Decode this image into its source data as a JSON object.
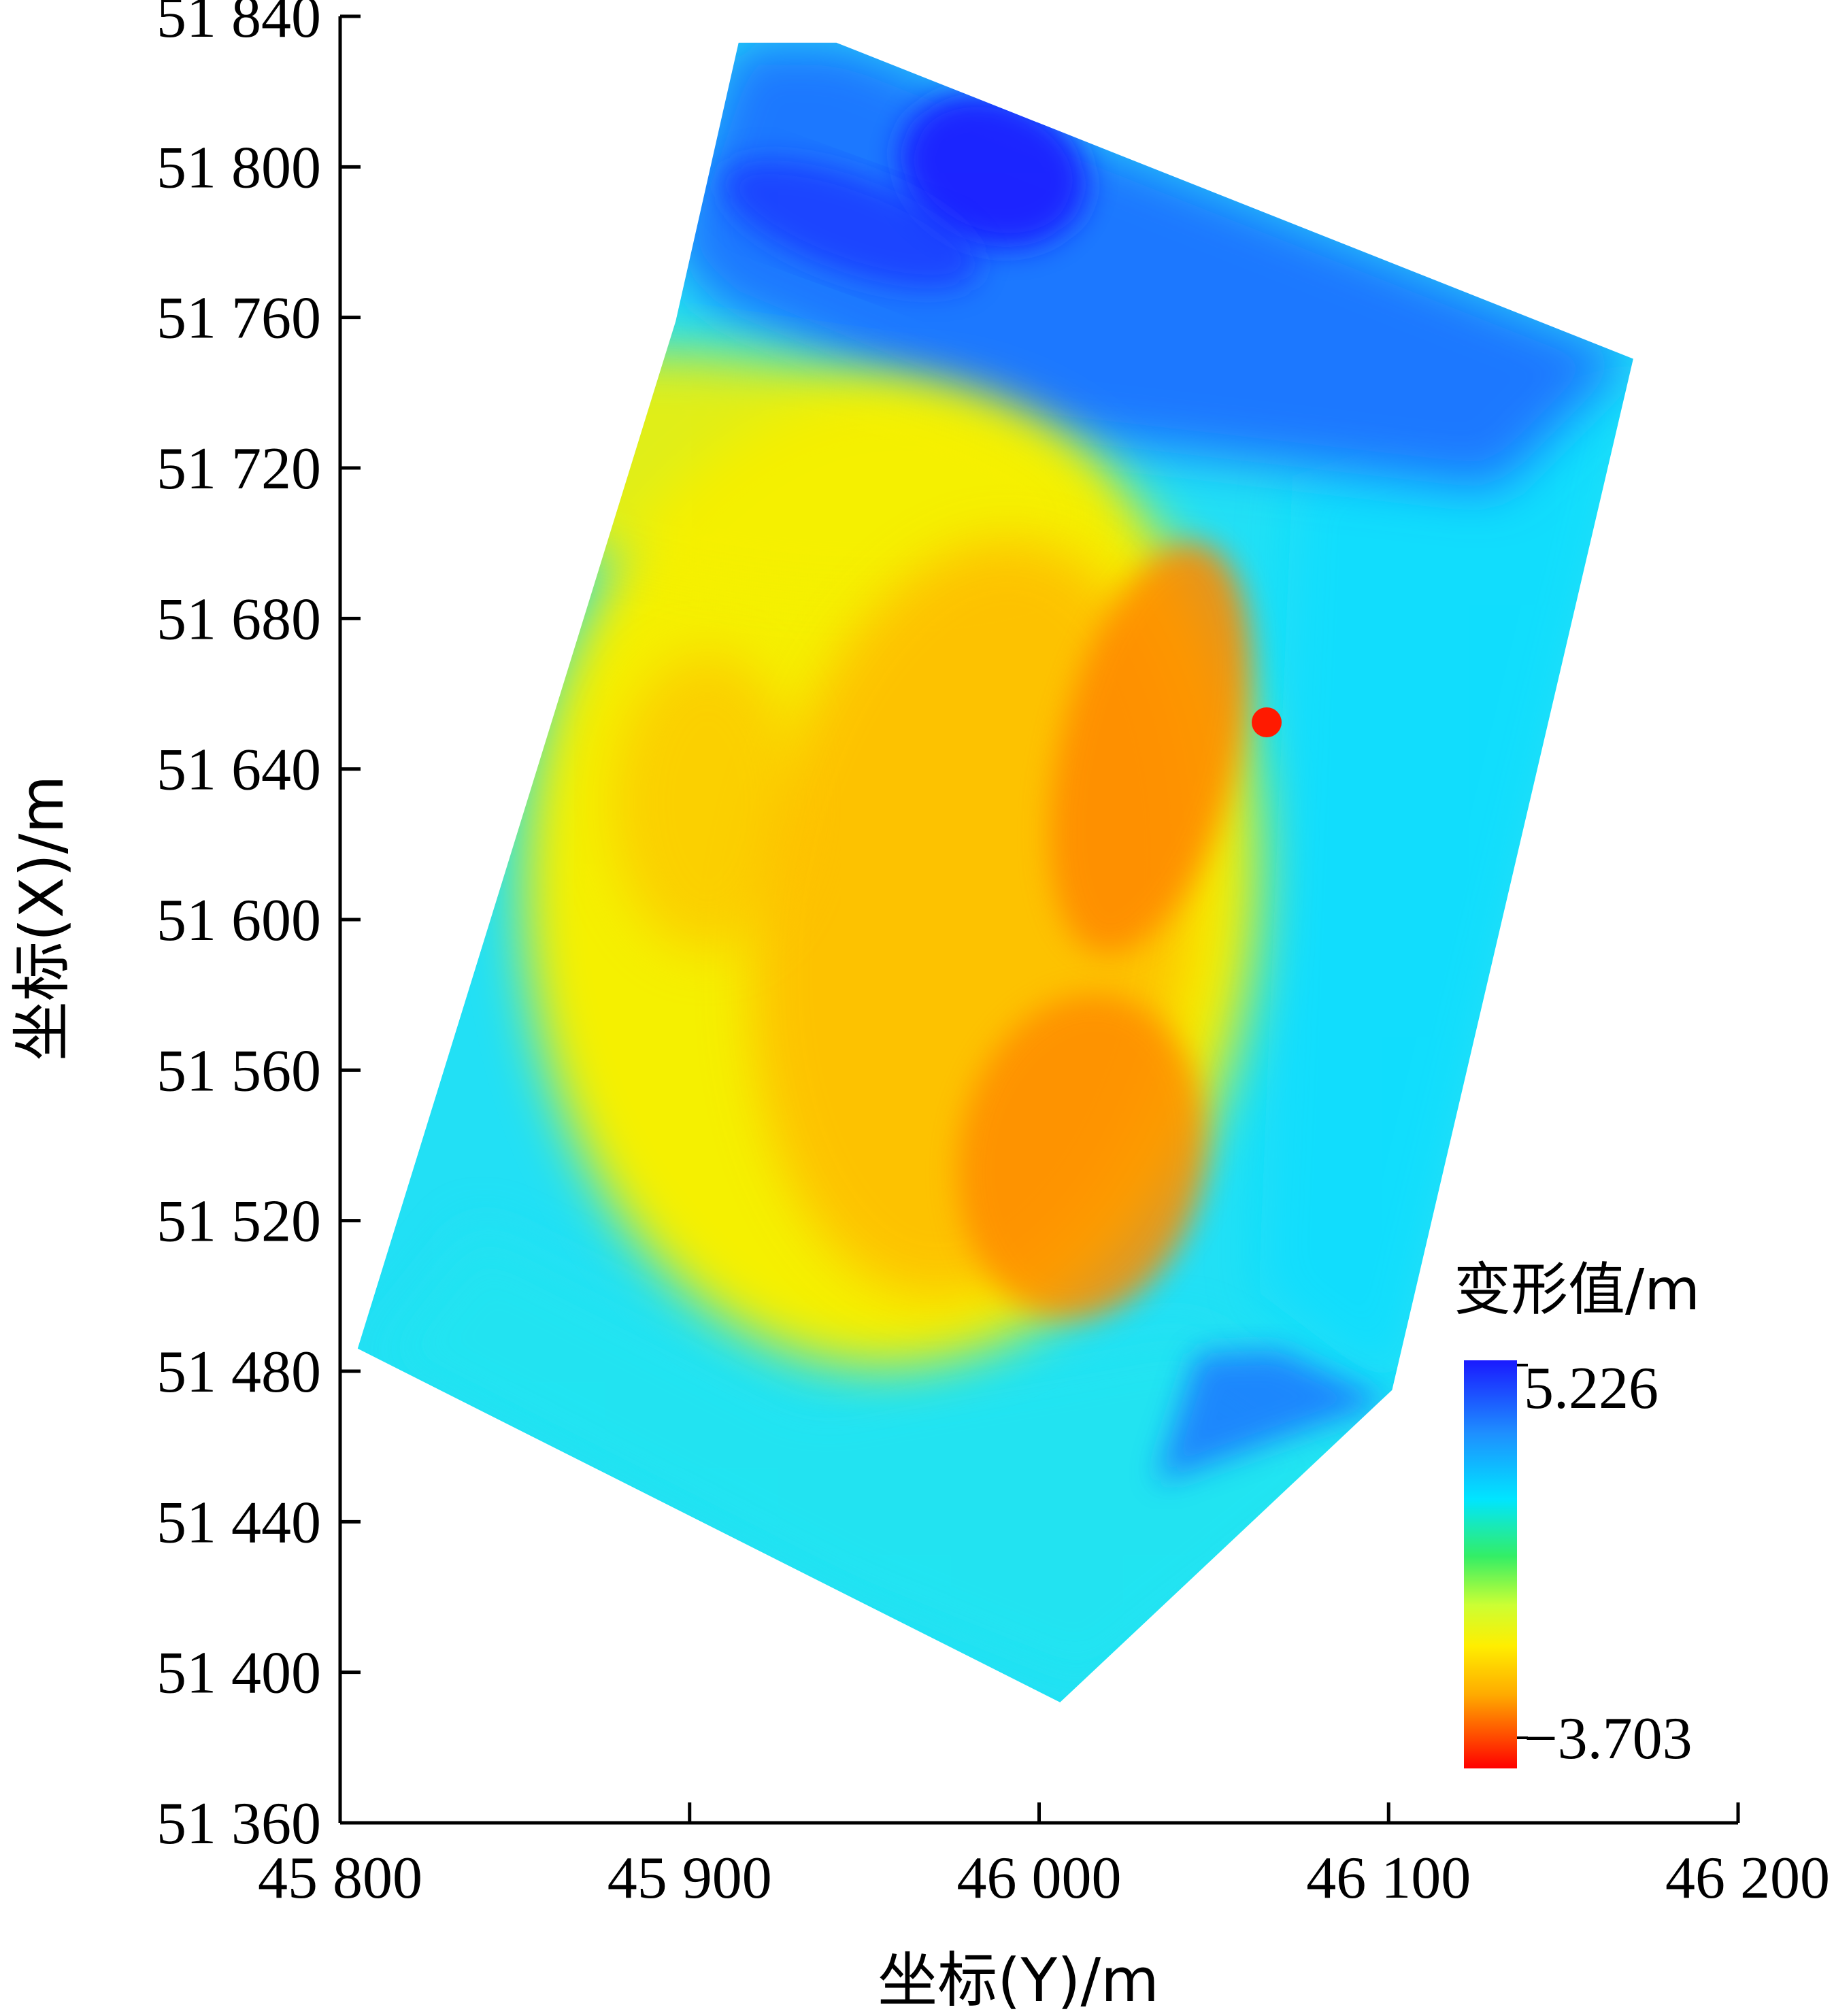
{
  "chart_data": {
    "type": "heatmap",
    "title": "",
    "xlabel": "坐标(Y)/m",
    "ylabel": "坐标(X)/m",
    "xlim": [
      45800,
      46200
    ],
    "ylim": [
      51360,
      51840
    ],
    "x_ticks": [
      45800,
      45900,
      46000,
      46100,
      46200
    ],
    "x_tick_labels": [
      "45 800",
      "45 900",
      "46 000",
      "46 100",
      "46 200"
    ],
    "y_ticks": [
      51360,
      51400,
      51440,
      51480,
      51520,
      51560,
      51600,
      51640,
      51680,
      51720,
      51760,
      51800,
      51840
    ],
    "y_tick_labels": [
      "51 360",
      "51 400",
      "51 440",
      "51 480",
      "51 520",
      "51 560",
      "51 600",
      "51 640",
      "51 680",
      "51 720",
      "51 760",
      "51 800",
      "51 840"
    ],
    "grid": false,
    "colorbar": {
      "title": "变形值/m",
      "max_label": "5.226",
      "min_label": "−3.703",
      "max": 5.226,
      "min": -3.703,
      "colors_top_to_bottom": [
        "#1a1aff",
        "#1e90ff",
        "#00e5ff",
        "#33ee66",
        "#ccff33",
        "#ffee00",
        "#ffaa00",
        "#ff4400",
        "#ff0000"
      ],
      "placement": "bottom-right"
    },
    "region_outline": [
      {
        "x": 45914,
        "y": 51833
      },
      {
        "x": 45942,
        "y": 51833
      },
      {
        "x": 46170,
        "y": 51749
      },
      {
        "x": 46101,
        "y": 51475
      },
      {
        "x": 46006,
        "y": 51392
      },
      {
        "x": 45805,
        "y": 51486
      },
      {
        "x": 45896,
        "y": 51759
      }
    ],
    "zones": [
      {
        "name": "north-band",
        "value": 4.5,
        "color": "#1e78ff"
      },
      {
        "name": "north-max",
        "value": 5.226,
        "color": "#1a1aff"
      },
      {
        "name": "east-margin",
        "value": 3.2,
        "color": "#11ddff"
      },
      {
        "name": "south-margin",
        "value": 2.8,
        "color": "#22e5f0"
      },
      {
        "name": "central-body",
        "value": -0.5,
        "color": "#f5f000"
      },
      {
        "name": "central-core",
        "value": -2.2,
        "color": "#ffbb00"
      },
      {
        "name": "east-trough",
        "value": -3.0,
        "color": "#ff8800"
      },
      {
        "name": "minimum",
        "value": -3.703,
        "color": "#ff1a00"
      }
    ]
  }
}
